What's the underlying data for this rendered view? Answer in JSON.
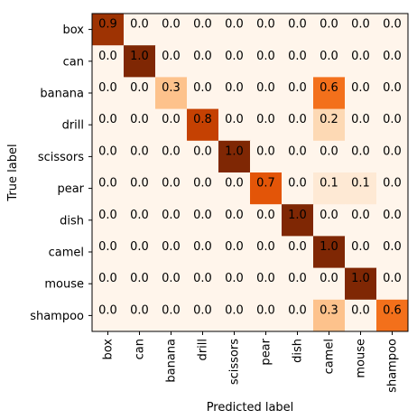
{
  "chart_data": {
    "type": "heatmap",
    "title": "",
    "xlabel": "Predicted label",
    "ylabel": "True label",
    "x_categories": [
      "box",
      "can",
      "banana",
      "drill",
      "scissors",
      "pear",
      "dish",
      "camel",
      "mouse",
      "shampoo"
    ],
    "y_categories": [
      "box",
      "can",
      "banana",
      "drill",
      "scissors",
      "pear",
      "dish",
      "camel",
      "mouse",
      "shampoo"
    ],
    "values": [
      [
        0.9,
        0.0,
        0.0,
        0.0,
        0.0,
        0.0,
        0.0,
        0.0,
        0.0,
        0.0
      ],
      [
        0.0,
        1.0,
        0.0,
        0.0,
        0.0,
        0.0,
        0.0,
        0.0,
        0.0,
        0.0
      ],
      [
        0.0,
        0.0,
        0.3,
        0.0,
        0.0,
        0.0,
        0.0,
        0.6,
        0.0,
        0.0
      ],
      [
        0.0,
        0.0,
        0.0,
        0.8,
        0.0,
        0.0,
        0.0,
        0.2,
        0.0,
        0.0
      ],
      [
        0.0,
        0.0,
        0.0,
        0.0,
        1.0,
        0.0,
        0.0,
        0.0,
        0.0,
        0.0
      ],
      [
        0.0,
        0.0,
        0.0,
        0.0,
        0.0,
        0.7,
        0.0,
        0.1,
        0.1,
        0.0
      ],
      [
        0.0,
        0.0,
        0.0,
        0.0,
        0.0,
        0.0,
        1.0,
        0.0,
        0.0,
        0.0
      ],
      [
        0.0,
        0.0,
        0.0,
        0.0,
        0.0,
        0.0,
        0.0,
        1.0,
        0.0,
        0.0
      ],
      [
        0.0,
        0.0,
        0.0,
        0.0,
        0.0,
        0.0,
        0.0,
        0.0,
        1.0,
        0.0
      ],
      [
        0.0,
        0.0,
        0.0,
        0.0,
        0.0,
        0.0,
        0.0,
        0.3,
        0.0,
        0.6
      ]
    ],
    "colormap": "Oranges",
    "value_range": [
      0,
      1
    ],
    "grid": false,
    "colors": {
      "low": "#fff5eb",
      "high": "#7f2704",
      "text": "#000000",
      "axis": "#000000"
    }
  }
}
